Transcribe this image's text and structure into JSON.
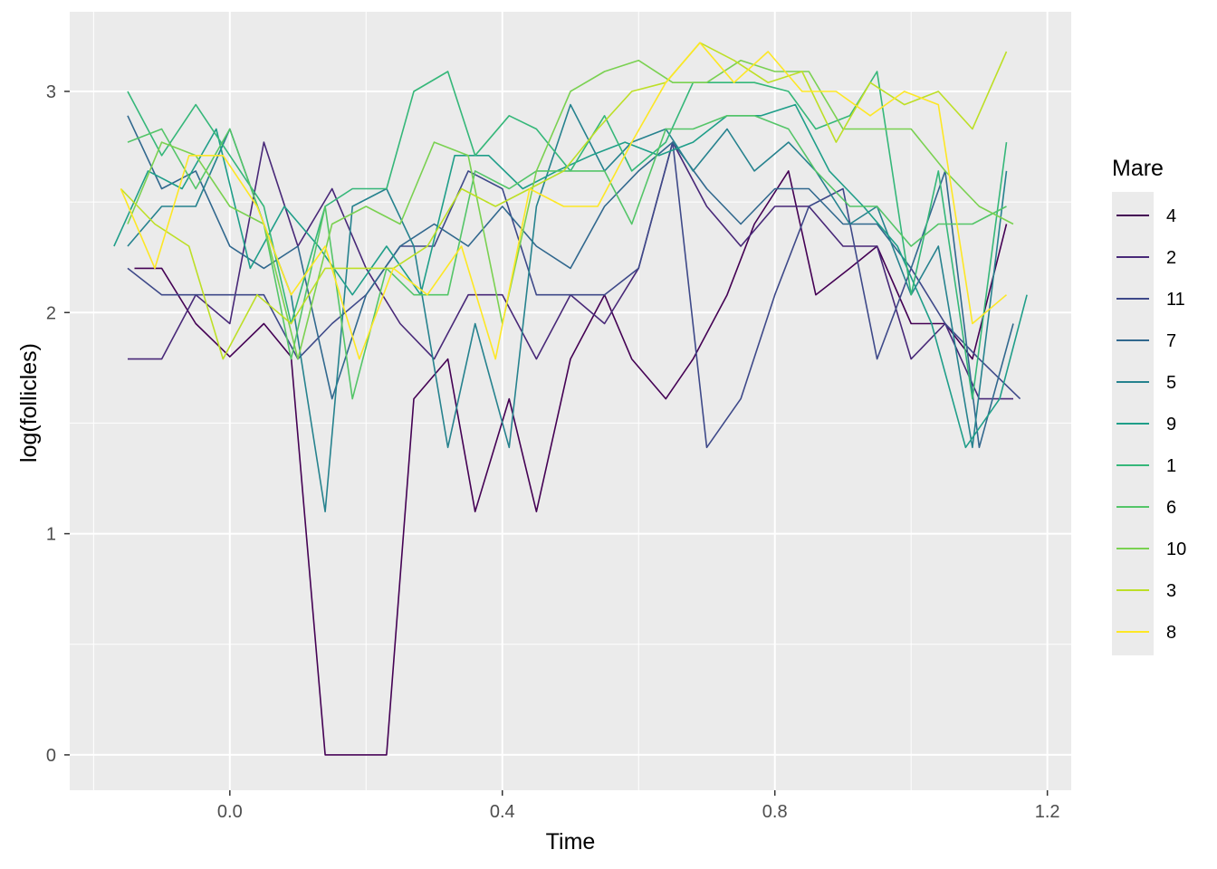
{
  "chart_data": {
    "type": "line",
    "title": "",
    "xlabel": "Time",
    "ylabel": "log(follicles)",
    "xlim": [
      -0.235,
      1.235
    ],
    "ylim": [
      -0.16,
      3.36
    ],
    "x_ticks": [
      0.0,
      0.4,
      0.8,
      1.2
    ],
    "x_tick_labels": [
      "0.0",
      "0.4",
      "0.8",
      "1.2"
    ],
    "y_ticks": [
      0,
      1,
      2,
      3
    ],
    "y_tick_labels": [
      "0",
      "1",
      "2",
      "3"
    ],
    "grid": true,
    "panel_background": "#ebebeb",
    "legend": {
      "title": "Mare",
      "position": "right"
    },
    "series": [
      {
        "name": "4",
        "color": "#440154",
        "x": [
          -0.14,
          -0.1,
          -0.05,
          0.0,
          0.05,
          0.09,
          0.14,
          0.18,
          0.23,
          0.27,
          0.32,
          0.36,
          0.41,
          0.45,
          0.5,
          0.55,
          0.59,
          0.64,
          0.68,
          0.73,
          0.77,
          0.82,
          0.86,
          0.91,
          0.95,
          1.0,
          1.05,
          1.09,
          1.14
        ],
        "y": [
          2.2,
          2.2,
          1.95,
          1.8,
          1.95,
          1.8,
          0.0,
          0.0,
          0.0,
          1.61,
          1.79,
          1.1,
          1.61,
          1.1,
          1.79,
          2.08,
          1.79,
          1.61,
          1.79,
          2.08,
          2.4,
          2.64,
          2.08,
          2.2,
          2.3,
          1.95,
          1.95,
          1.79,
          2.4
        ]
      },
      {
        "name": "2",
        "color": "#482878",
        "x": [
          -0.15,
          -0.1,
          -0.05,
          0.0,
          0.05,
          0.1,
          0.15,
          0.2,
          0.25,
          0.3,
          0.35,
          0.4,
          0.45,
          0.5,
          0.55,
          0.6,
          0.65,
          0.7,
          0.75,
          0.8,
          0.85,
          0.9,
          0.95,
          1.0,
          1.05,
          1.1,
          1.15
        ],
        "y": [
          1.79,
          1.79,
          2.08,
          1.95,
          2.77,
          2.3,
          2.56,
          2.2,
          1.95,
          1.79,
          2.08,
          2.08,
          1.79,
          2.08,
          1.95,
          2.2,
          2.77,
          2.48,
          2.3,
          2.48,
          2.48,
          2.3,
          2.3,
          1.79,
          1.95,
          1.61,
          1.61
        ]
      },
      {
        "name": "11",
        "color": "#3e4989",
        "x": [
          -0.15,
          -0.1,
          -0.05,
          0.0,
          0.05,
          0.1,
          0.15,
          0.2,
          0.25,
          0.3,
          0.35,
          0.4,
          0.45,
          0.5,
          0.55,
          0.6,
          0.65,
          0.7,
          0.75,
          0.8,
          0.85,
          0.9,
          0.95,
          1.0,
          1.05,
          1.1,
          1.16
        ],
        "y": [
          2.2,
          2.08,
          2.08,
          2.08,
          2.08,
          1.79,
          1.95,
          2.08,
          2.3,
          2.3,
          2.64,
          2.56,
          2.08,
          2.08,
          2.08,
          2.2,
          2.77,
          1.39,
          1.61,
          2.08,
          2.48,
          2.56,
          1.79,
          2.2,
          1.95,
          1.79,
          1.61
        ]
      },
      {
        "name": "7",
        "color": "#31688e",
        "x": [
          -0.15,
          -0.1,
          -0.05,
          0.0,
          0.05,
          0.1,
          0.15,
          0.2,
          0.25,
          0.3,
          0.35,
          0.4,
          0.45,
          0.5,
          0.55,
          0.6,
          0.65,
          0.7,
          0.75,
          0.8,
          0.85,
          0.9,
          0.95,
          1.0,
          1.05,
          1.1,
          1.15
        ],
        "y": [
          2.89,
          2.56,
          2.64,
          2.3,
          2.2,
          2.3,
          1.61,
          2.08,
          2.3,
          2.4,
          2.3,
          2.48,
          2.3,
          2.2,
          2.48,
          2.64,
          2.77,
          2.56,
          2.4,
          2.56,
          2.56,
          2.4,
          2.4,
          2.2,
          2.64,
          1.39,
          1.95
        ]
      },
      {
        "name": "5",
        "color": "#26828e",
        "x": [
          -0.15,
          -0.1,
          -0.05,
          0.0,
          0.05,
          0.09,
          0.14,
          0.18,
          0.23,
          0.27,
          0.32,
          0.36,
          0.41,
          0.45,
          0.5,
          0.55,
          0.59,
          0.64,
          0.68,
          0.73,
          0.77,
          0.82,
          0.86,
          0.91,
          0.95,
          1.0,
          1.04,
          1.09,
          1.14
        ],
        "y": [
          2.3,
          2.48,
          2.48,
          2.83,
          2.4,
          2.08,
          1.1,
          2.48,
          2.56,
          2.3,
          1.39,
          1.95,
          1.39,
          2.48,
          2.94,
          2.64,
          2.77,
          2.83,
          2.64,
          2.83,
          2.64,
          2.77,
          2.64,
          2.4,
          2.48,
          2.08,
          2.3,
          1.39,
          2.64
        ]
      },
      {
        "name": "9",
        "color": "#1f9e89",
        "x": [
          -0.17,
          -0.12,
          -0.07,
          -0.02,
          0.03,
          0.08,
          0.13,
          0.18,
          0.23,
          0.28,
          0.33,
          0.38,
          0.43,
          0.48,
          0.53,
          0.58,
          0.63,
          0.68,
          0.73,
          0.78,
          0.83,
          0.88,
          0.93,
          0.98,
          1.03,
          1.08,
          1.13,
          1.17
        ],
        "y": [
          2.3,
          2.64,
          2.56,
          2.83,
          2.2,
          2.48,
          2.3,
          2.08,
          2.3,
          2.08,
          2.71,
          2.71,
          2.56,
          2.64,
          2.71,
          2.77,
          2.71,
          2.77,
          2.89,
          2.89,
          2.94,
          2.64,
          2.48,
          2.3,
          1.95,
          1.39,
          1.61,
          2.08
        ]
      },
      {
        "name": "1",
        "color": "#35b779",
        "x": [
          -0.15,
          -0.1,
          -0.05,
          0.0,
          0.05,
          0.09,
          0.14,
          0.18,
          0.23,
          0.27,
          0.32,
          0.36,
          0.41,
          0.45,
          0.5,
          0.55,
          0.59,
          0.64,
          0.68,
          0.73,
          0.77,
          0.82,
          0.86,
          0.91,
          0.95,
          1.0,
          1.04,
          1.09,
          1.14
        ],
        "y": [
          3.0,
          2.71,
          2.94,
          2.71,
          2.48,
          1.95,
          2.48,
          2.56,
          2.56,
          3.0,
          3.09,
          2.71,
          2.89,
          2.83,
          2.64,
          2.89,
          2.64,
          2.77,
          3.04,
          3.04,
          3.04,
          3.0,
          2.83,
          2.89,
          3.09,
          2.08,
          2.64,
          1.61,
          2.77
        ]
      },
      {
        "name": "6",
        "color": "#54c568",
        "x": [
          -0.15,
          -0.1,
          -0.05,
          0.0,
          0.05,
          0.09,
          0.14,
          0.18,
          0.23,
          0.27,
          0.32,
          0.36,
          0.41,
          0.45,
          0.5,
          0.55,
          0.59,
          0.64,
          0.68,
          0.73,
          0.77,
          0.82,
          0.86,
          0.91,
          0.95,
          1.0,
          1.04,
          1.09,
          1.14
        ],
        "y": [
          2.77,
          2.83,
          2.56,
          2.83,
          2.4,
          1.79,
          2.48,
          1.61,
          2.2,
          2.08,
          2.08,
          2.64,
          2.56,
          2.64,
          2.64,
          2.64,
          2.4,
          2.83,
          2.83,
          2.89,
          2.89,
          2.83,
          2.64,
          2.48,
          2.48,
          2.3,
          2.4,
          2.4,
          2.48
        ]
      },
      {
        "name": "10",
        "color": "#7ad151",
        "x": [
          -0.15,
          -0.1,
          -0.05,
          0.0,
          0.05,
          0.1,
          0.15,
          0.2,
          0.25,
          0.3,
          0.35,
          0.4,
          0.45,
          0.5,
          0.55,
          0.6,
          0.65,
          0.7,
          0.75,
          0.8,
          0.85,
          0.9,
          0.95,
          1.0,
          1.05,
          1.1,
          1.15
        ],
        "y": [
          2.4,
          2.77,
          2.71,
          2.48,
          2.4,
          1.79,
          2.4,
          2.48,
          2.4,
          2.77,
          2.71,
          1.95,
          2.64,
          3.0,
          3.09,
          3.14,
          3.04,
          3.04,
          3.14,
          3.09,
          3.09,
          2.83,
          2.83,
          2.83,
          2.64,
          2.48,
          2.4
        ]
      },
      {
        "name": "3",
        "color": "#bddf26",
        "x": [
          -0.16,
          -0.11,
          -0.06,
          -0.01,
          0.04,
          0.09,
          0.14,
          0.19,
          0.24,
          0.29,
          0.34,
          0.39,
          0.44,
          0.49,
          0.54,
          0.59,
          0.64,
          0.69,
          0.74,
          0.79,
          0.84,
          0.89,
          0.94,
          0.99,
          1.04,
          1.09,
          1.14
        ],
        "y": [
          2.56,
          2.4,
          2.3,
          1.79,
          2.08,
          1.95,
          2.2,
          2.2,
          2.2,
          2.3,
          2.56,
          2.48,
          2.56,
          2.64,
          2.83,
          3.0,
          3.04,
          3.22,
          3.14,
          3.04,
          3.09,
          2.77,
          3.04,
          2.94,
          3.0,
          2.83,
          3.18
        ]
      },
      {
        "name": "8",
        "color": "#fde725",
        "x": [
          -0.16,
          -0.11,
          -0.06,
          -0.01,
          0.04,
          0.09,
          0.14,
          0.19,
          0.24,
          0.29,
          0.34,
          0.39,
          0.44,
          0.49,
          0.54,
          0.59,
          0.64,
          0.69,
          0.74,
          0.79,
          0.84,
          0.89,
          0.94,
          0.99,
          1.04,
          1.09,
          1.14
        ],
        "y": [
          2.56,
          2.2,
          2.71,
          2.71,
          2.48,
          2.08,
          2.3,
          1.79,
          2.2,
          2.08,
          2.3,
          1.79,
          2.56,
          2.48,
          2.48,
          2.77,
          3.04,
          3.22,
          3.04,
          3.18,
          3.0,
          3.0,
          2.89,
          3.0,
          2.94,
          1.95,
          2.08
        ]
      }
    ]
  }
}
